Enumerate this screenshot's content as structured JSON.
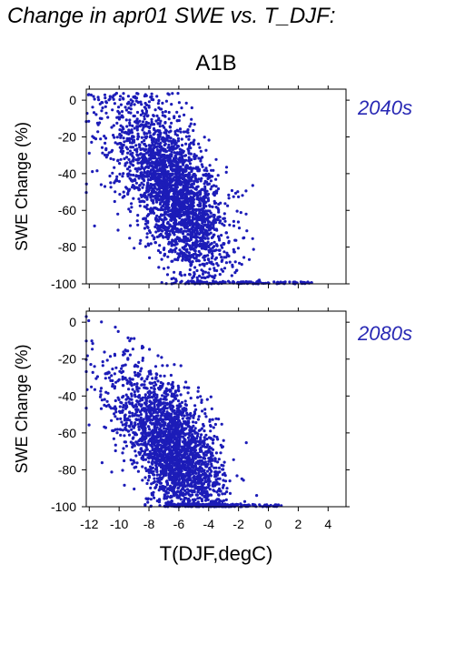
{
  "page_title": "Change in apr01 SWE vs. T_DJF:",
  "scenario": "A1B",
  "colors": {
    "points": "#1c1cb8",
    "period_label": "#2828b4",
    "frame": "#000000"
  },
  "chart_data": [
    {
      "type": "scatter",
      "title": "A1B",
      "annotation": "2040s",
      "ylabel": "SWE Change (%)",
      "xlabel": "",
      "xlim": [
        -12.2,
        5.2
      ],
      "ylim": [
        -100,
        6
      ],
      "yticks": [
        0,
        -20,
        -40,
        -60,
        -80,
        -100
      ],
      "xtick_labels_shown": false,
      "grid": false,
      "distribution": {
        "x_range": [
          -12.2,
          3.0
        ],
        "y_range": [
          -100,
          5
        ],
        "dense_region": {
          "x": [
            -9,
            -3
          ],
          "y": [
            -90,
            -15
          ]
        },
        "note_trend": "declining with warmer T"
      }
    },
    {
      "type": "scatter",
      "annotation": "2080s",
      "ylabel": "SWE Change (%)",
      "xlabel": "T(DJF,degC)",
      "xlim": [
        -12.2,
        5.2
      ],
      "ylim": [
        -100,
        6
      ],
      "xticks": [
        -12,
        -10,
        -8,
        -6,
        -4,
        -2,
        0,
        2,
        4
      ],
      "yticks": [
        0,
        -20,
        -40,
        -60,
        -80,
        -100
      ],
      "grid": false,
      "distribution": {
        "x_range": [
          -12.2,
          1.0
        ],
        "y_range": [
          -100,
          2
        ],
        "dense_region": {
          "x": [
            -9,
            -3
          ],
          "y": [
            -100,
            -45
          ]
        },
        "note_trend": "declining with warmer T"
      }
    }
  ]
}
